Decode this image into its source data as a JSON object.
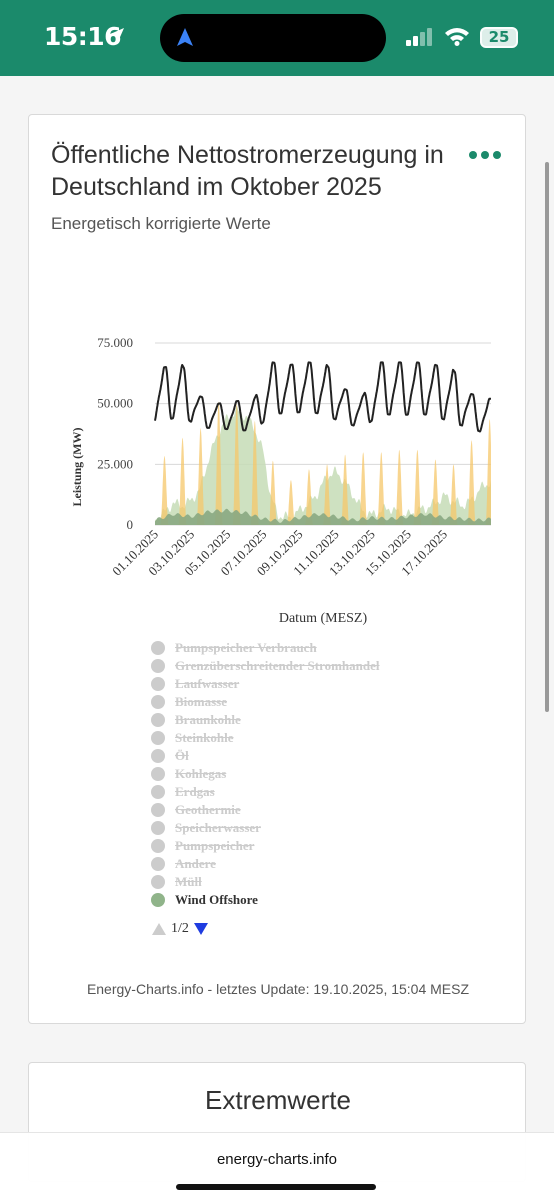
{
  "status_bar": {
    "time": "15:16",
    "battery": "25"
  },
  "chart_card": {
    "title": "Öffentliche Nettostromerzeugung in Deutschland im Oktober 2025",
    "subtitle": "Energetisch korrigierte Werte",
    "credit": "Energy-Charts.info - letztes Update: 19.10.2025, 15:04 MESZ"
  },
  "chart_data": {
    "type": "area",
    "xlabel": "Datum (MESZ)",
    "ylabel": "Leistung (MW)",
    "ylim": [
      0,
      75000
    ],
    "y_ticks": [
      "0",
      "25.000",
      "50.000",
      "75.000"
    ],
    "x_ticks": [
      "01.10.2025",
      "03.10.2025",
      "05.10.2025",
      "07.10.2025",
      "09.10.2025",
      "11.10.2025",
      "13.10.2025",
      "15.10.2025",
      "17.10.2025"
    ],
    "x_range_days": [
      1,
      19.6
    ],
    "colors": {
      "load": "#222222",
      "solar": "#f5c76a",
      "wind_onshore": "#c6dcb6",
      "wind_offshore": "#8aa882"
    },
    "series": [
      {
        "name": "Wind Offshore",
        "points": [
          [
            1,
            2000
          ],
          [
            2,
            4500
          ],
          [
            3,
            3500
          ],
          [
            4,
            5500
          ],
          [
            5,
            6000
          ],
          [
            6,
            5000
          ],
          [
            7,
            2500
          ],
          [
            8,
            1500
          ],
          [
            9,
            3000
          ],
          [
            10,
            4500
          ],
          [
            11,
            3500
          ],
          [
            12,
            2000
          ],
          [
            13,
            3000
          ],
          [
            14,
            2500
          ],
          [
            15,
            3500
          ],
          [
            16,
            4500
          ],
          [
            17,
            3000
          ],
          [
            18,
            2500
          ],
          [
            19,
            2000
          ],
          [
            19.6,
            2500
          ]
        ]
      }
    ],
    "envelopes": [
      {
        "key": "wind_onshore",
        "points": [
          [
            1,
            3000
          ],
          [
            1.5,
            5000
          ],
          [
            2,
            9000
          ],
          [
            2.5,
            8000
          ],
          [
            3,
            10000
          ],
          [
            3.5,
            15000
          ],
          [
            4,
            28000
          ],
          [
            4.5,
            38000
          ],
          [
            5,
            44000
          ],
          [
            5.5,
            47000
          ],
          [
            6,
            45000
          ],
          [
            6.5,
            40000
          ],
          [
            7,
            30000
          ],
          [
            7.4,
            12000
          ],
          [
            7.8,
            4000
          ],
          [
            8.5,
            3000
          ],
          [
            9,
            6000
          ],
          [
            9.5,
            9000
          ],
          [
            10,
            13000
          ],
          [
            10.5,
            20000
          ],
          [
            11,
            22000
          ],
          [
            11.5,
            18000
          ],
          [
            12,
            12000
          ],
          [
            12.5,
            6000
          ],
          [
            13,
            4000
          ],
          [
            13.5,
            6000
          ],
          [
            14,
            7000
          ],
          [
            14.5,
            5000
          ],
          [
            15,
            4000
          ],
          [
            15.5,
            6000
          ],
          [
            16,
            7000
          ],
          [
            16.5,
            9000
          ],
          [
            17,
            12000
          ],
          [
            17.5,
            10000
          ],
          [
            18,
            8000
          ],
          [
            18.5,
            10000
          ],
          [
            19,
            15000
          ],
          [
            19.6,
            18000
          ]
        ]
      }
    ],
    "solar_daily_peaks": [
      [
        1,
        15000
      ],
      [
        2,
        42000
      ],
      [
        3,
        30000
      ],
      [
        4,
        50000
      ],
      [
        5,
        52000
      ],
      [
        6,
        48000
      ],
      [
        7,
        38000
      ],
      [
        8,
        15000
      ],
      [
        9,
        22000
      ],
      [
        10,
        24000
      ],
      [
        11,
        26000
      ],
      [
        12,
        32000
      ],
      [
        13,
        28000
      ],
      [
        14,
        32000
      ],
      [
        15,
        30000
      ],
      [
        16,
        32000
      ],
      [
        17,
        22000
      ],
      [
        18,
        28000
      ],
      [
        19,
        42000
      ],
      [
        19.6,
        44000
      ]
    ],
    "load_daily": [
      [
        1,
        65000,
        43000
      ],
      [
        2,
        66000,
        45000
      ],
      [
        3,
        53000,
        40000
      ],
      [
        4,
        50000,
        40000
      ],
      [
        5,
        51000,
        39000
      ],
      [
        6,
        52000,
        39000
      ],
      [
        7,
        67000,
        46000
      ],
      [
        8,
        66000,
        46000
      ],
      [
        9,
        67000,
        47000
      ],
      [
        10,
        66000,
        45000
      ],
      [
        11,
        56000,
        42000
      ],
      [
        12,
        53000,
        40000
      ],
      [
        13,
        67000,
        46000
      ],
      [
        14,
        67000,
        45000
      ],
      [
        15,
        67000,
        46000
      ],
      [
        16,
        66000,
        45000
      ],
      [
        17,
        64000,
        42000
      ],
      [
        18,
        54000,
        40000
      ],
      [
        19,
        52000,
        37000
      ]
    ],
    "legend": [
      {
        "label": "Pumpspeicher Verbrauch",
        "active": false
      },
      {
        "label": "Grenzüberschreitender Stromhandel",
        "active": false
      },
      {
        "label": "Laufwasser",
        "active": false
      },
      {
        "label": "Biomasse",
        "active": false
      },
      {
        "label": "Braunkohle",
        "active": false
      },
      {
        "label": "Steinkohle",
        "active": false
      },
      {
        "label": "Öl",
        "active": false
      },
      {
        "label": "Kohlegas",
        "active": false
      },
      {
        "label": "Erdgas",
        "active": false
      },
      {
        "label": "Geothermie",
        "active": false
      },
      {
        "label": "Speicherwasser",
        "active": false
      },
      {
        "label": "Pumpspeicher",
        "active": false
      },
      {
        "label": "Andere",
        "active": false
      },
      {
        "label": "Müll",
        "active": false
      },
      {
        "label": "Wind Offshore",
        "active": true
      }
    ],
    "legend_page": "1/2"
  },
  "extremes_card": {
    "title": "Extremwerte"
  },
  "browser": {
    "url": "energy-charts.info"
  }
}
